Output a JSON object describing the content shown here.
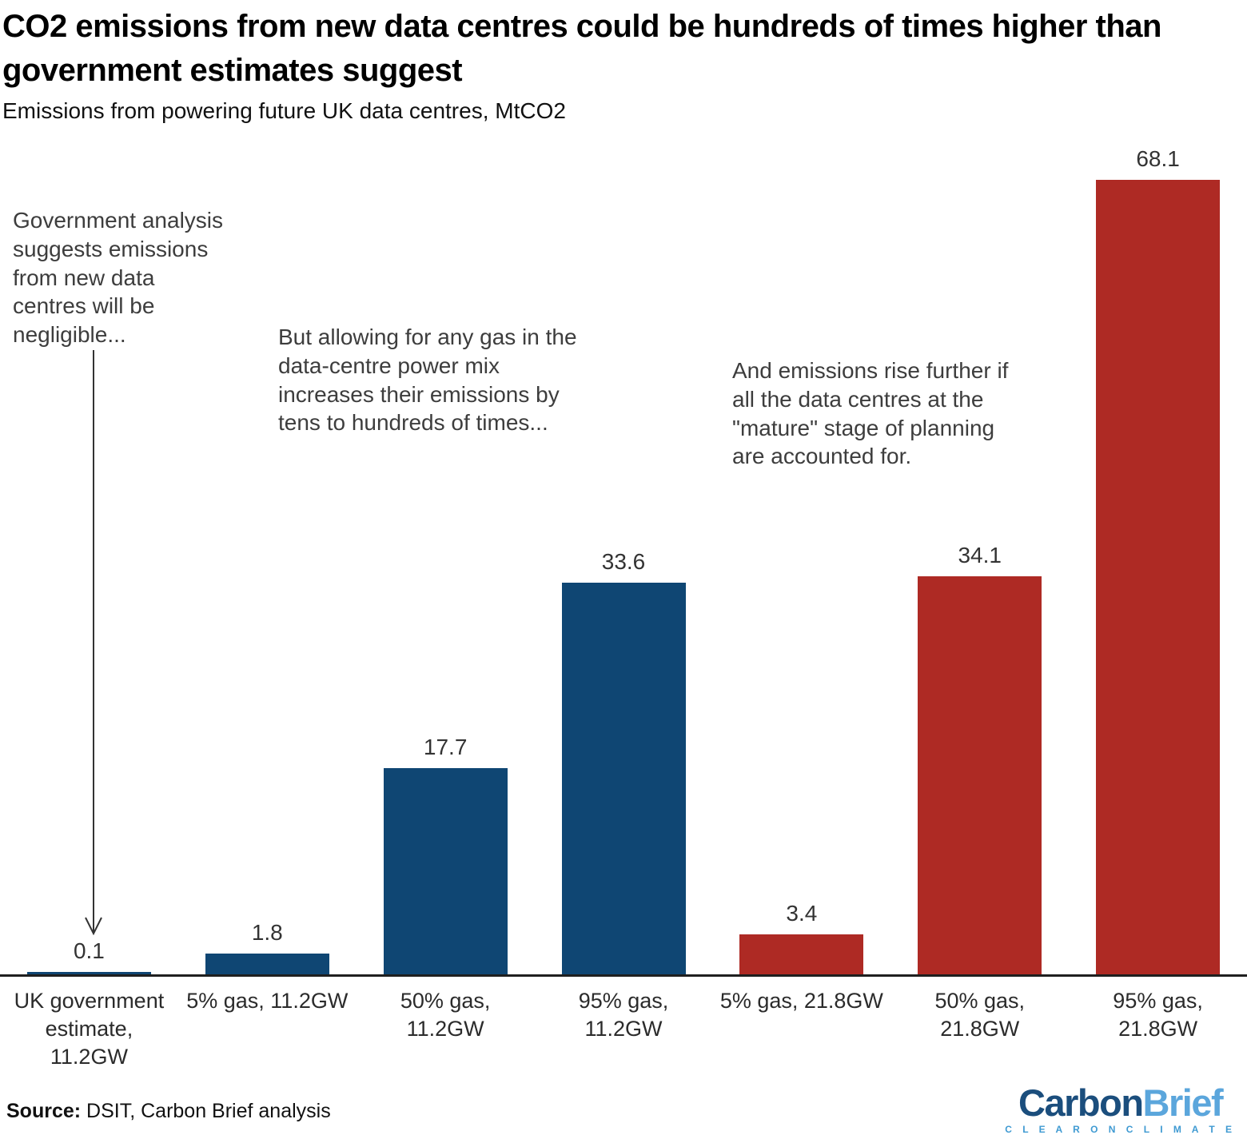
{
  "header": {
    "title_line1": "CO2 emissions from new data centres could be hundreds of times higher than",
    "title_line2": "government estimates suggest",
    "subtitle": "Emissions from powering future UK data centres, MtCO2"
  },
  "annotations": [
    {
      "text": "Government analysis suggests emissions from new data centres will be negligible..."
    },
    {
      "text": "But allowing for any gas in the data-centre power mix increases their emissions by tens to hundreds of times..."
    },
    {
      "text": "And emissions rise further if all the data centres at the \"mature\" stage of planning are accounted for."
    }
  ],
  "chart_data": {
    "type": "bar",
    "title": "CO2 emissions from new data centres could be hundreds of times higher than government estimates suggest",
    "subtitle": "Emissions from powering future UK data centres, MtCO2",
    "categories": [
      "UK government estimate, 11.2GW",
      "5% gas, 11.2GW",
      "50% gas, 11.2GW",
      "95% gas, 11.2GW",
      "5% gas, 21.8GW",
      "50% gas, 21.8GW",
      "95% gas, 21.8GW"
    ],
    "values": [
      0.1,
      1.8,
      17.7,
      33.6,
      3.4,
      34.1,
      68.1
    ],
    "value_labels": [
      "0.1",
      "1.8",
      "17.7",
      "33.6",
      "3.4",
      "34.1",
      "68.1"
    ],
    "bar_color_keys": [
      "blue",
      "blue",
      "blue",
      "blue",
      "red",
      "red",
      "red"
    ],
    "colors": {
      "blue": "#0f4673",
      "red": "#ae2a24"
    },
    "ylabel": "MtCO2",
    "ylim": [
      0,
      70
    ],
    "grid": false,
    "legend": "none"
  },
  "footer": {
    "source_label": "Source:",
    "source_text": " DSIT, Carbon Brief analysis",
    "logo": {
      "part1": "Carbon",
      "part2": "Brief",
      "tagline": "C L E A R   O N   C L I M A T E"
    }
  }
}
